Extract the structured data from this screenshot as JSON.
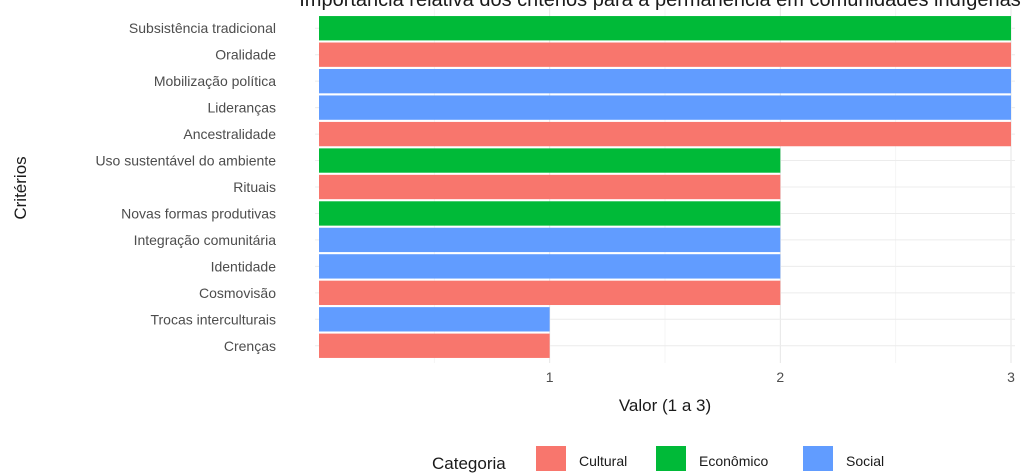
{
  "chart_data": {
    "type": "bar",
    "orientation": "horizontal",
    "title": "Importância relativa dos critérios para a permanência em comunidades indígenas",
    "xlabel": "Valor (1 a 3)",
    "ylabel": "Critérios",
    "xlim": [
      0,
      3
    ],
    "x_ticks": [
      "1",
      "2",
      "3"
    ],
    "grid": true,
    "legend_position": "bottom",
    "legend_title": "Categoria",
    "categories_legend": [
      {
        "name": "Cultural",
        "color": "#F8766D"
      },
      {
        "name": "Econômico",
        "color": "#00BA38"
      },
      {
        "name": "Social",
        "color": "#619CFF"
      }
    ],
    "bars": [
      {
        "label": "Subsistência tradicional",
        "value": 3,
        "category": "Econômico"
      },
      {
        "label": "Oralidade",
        "value": 3,
        "category": "Cultural"
      },
      {
        "label": "Mobilização política",
        "value": 3,
        "category": "Social"
      },
      {
        "label": "Lideranças",
        "value": 3,
        "category": "Social"
      },
      {
        "label": "Ancestralidade",
        "value": 3,
        "category": "Cultural"
      },
      {
        "label": "Uso sustentável do ambiente",
        "value": 2,
        "category": "Econômico"
      },
      {
        "label": "Rituais",
        "value": 2,
        "category": "Cultural"
      },
      {
        "label": "Novas formas produtivas",
        "value": 2,
        "category": "Econômico"
      },
      {
        "label": "Integração comunitária",
        "value": 2,
        "category": "Social"
      },
      {
        "label": "Identidade",
        "value": 2,
        "category": "Social"
      },
      {
        "label": "Cosmovisão",
        "value": 2,
        "category": "Cultural"
      },
      {
        "label": "Trocas interculturais",
        "value": 1,
        "category": "Social"
      },
      {
        "label": "Crenças",
        "value": 1,
        "category": "Cultural"
      }
    ]
  }
}
